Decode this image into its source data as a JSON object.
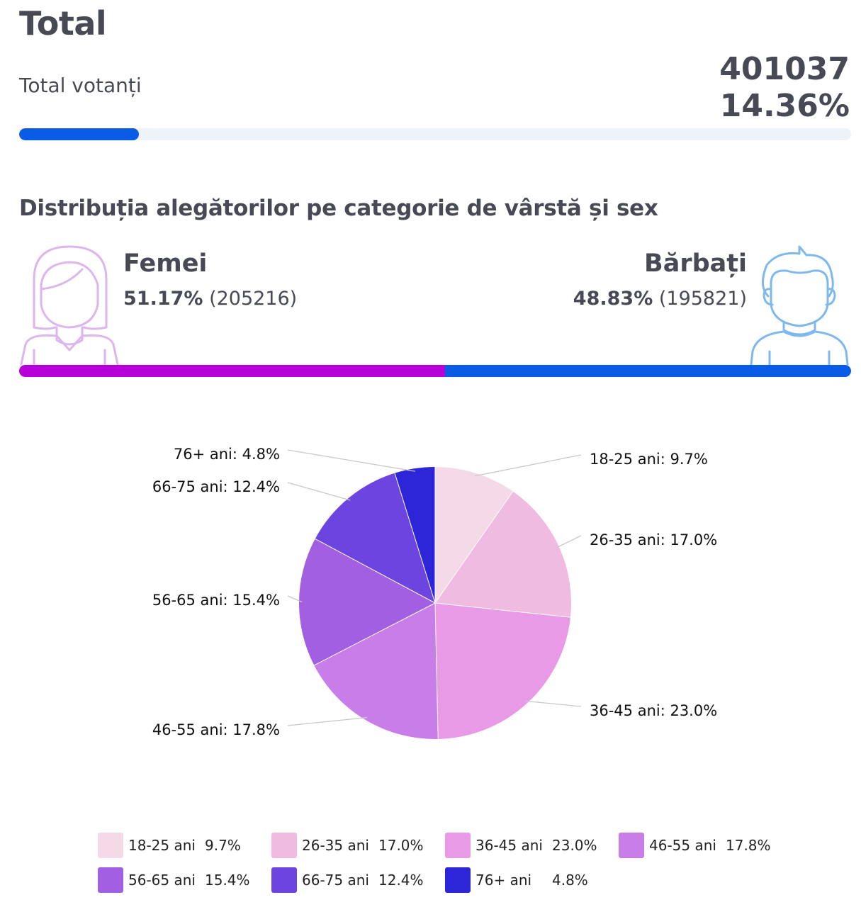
{
  "header": {
    "title": "Total",
    "total_label": "Total votanți",
    "total_count": "401037",
    "total_percent": "14.36%",
    "progress": 0.1436
  },
  "distribution": {
    "title": "Distribuția alegătorilor pe categorie de vârstă și sex",
    "female": {
      "label": "Femei",
      "percent": "51.17%",
      "count": "(205216)",
      "share": 0.5117,
      "icon": "female-avatar-icon",
      "color": "#b700d9"
    },
    "male": {
      "label": "Bărbați",
      "percent": "48.83%",
      "count": "(195821)",
      "share": 0.4883,
      "icon": "male-avatar-icon",
      "color": "#0a5ce6"
    }
  },
  "chart_data": {
    "type": "pie",
    "categories": [
      "18-25 ani",
      "26-35 ani",
      "36-45 ani",
      "46-55 ani",
      "56-65 ani",
      "66-75 ani",
      "76+ ani"
    ],
    "values": [
      9.7,
      17.0,
      23.0,
      17.8,
      15.4,
      12.4,
      4.8
    ],
    "labels": [
      "18-25 ani: 9.7%",
      "26-35 ani: 17.0%",
      "36-45 ani: 23.0%",
      "46-55 ani: 17.8%",
      "56-65 ani: 15.4%",
      "66-75 ani: 12.4%",
      "76+ ani: 4.8%"
    ],
    "legend_values": [
      "9.7%",
      "17.0%",
      "23.0%",
      "17.8%",
      "15.4%",
      "12.4%",
      "4.8%"
    ],
    "colors": [
      "#f4d9e6",
      "#efbbe0",
      "#e99ae6",
      "#c97de8",
      "#a25fe2",
      "#6c45e0",
      "#2c26d8"
    ],
    "legend_position": "bottom"
  }
}
